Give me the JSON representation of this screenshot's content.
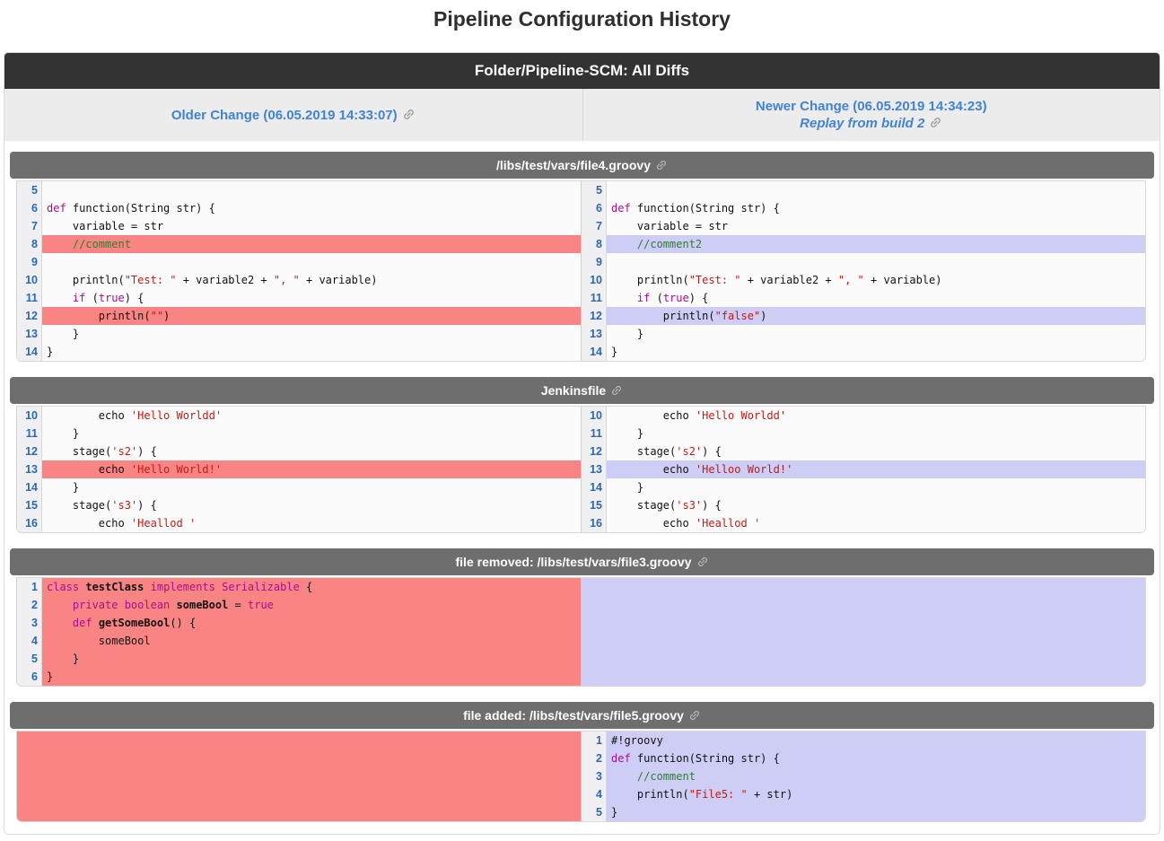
{
  "page": {
    "title": "Pipeline Configuration History"
  },
  "header": {
    "title": "Folder/Pipeline-SCM: All Diffs"
  },
  "compare": {
    "older_label": "Older Change (06.05.2019 14:33:07)",
    "newer_label": "Newer Change (06.05.2019 14:34:23)",
    "replay_label": "Replay from build 2"
  },
  "icons": {
    "link": "chain-link-icon"
  },
  "colors": {
    "link_blue": "#4183d4",
    "removed_bg": "#f98484",
    "added_bg": "#cdcdf6",
    "title_bar_bg": "#333333",
    "section_header_bg": "#6e6e6e",
    "keyword": "#aa0d91",
    "string": "#c41a16",
    "comment": "#2e7d32",
    "line_number": "#2e67b1"
  },
  "sections": [
    {
      "title": "/libs/test/vars/file4.groovy",
      "left": {
        "lines": [
          [
            "5",
            "",
            []
          ],
          [
            "6",
            "",
            [
              [
                "k",
                "def"
              ],
              [
                "p",
                " function(String str) {"
              ]
            ]
          ],
          [
            "7",
            "",
            [
              [
                "p",
                "    variable = str"
              ]
            ]
          ],
          [
            "8",
            "del",
            [
              [
                "p",
                "    "
              ],
              [
                "c",
                "//comment"
              ]
            ]
          ],
          [
            "9",
            "",
            []
          ],
          [
            "10",
            "",
            [
              [
                "p",
                "    println("
              ],
              [
                "s",
                "\"Test: \""
              ],
              [
                "p",
                " + variable2 + "
              ],
              [
                "s",
                "\", \""
              ],
              [
                "p",
                " + variable)"
              ]
            ]
          ],
          [
            "11",
            "",
            [
              [
                "p",
                "    "
              ],
              [
                "k",
                "if"
              ],
              [
                "p",
                " ("
              ],
              [
                "k",
                "true"
              ],
              [
                "p",
                ") {"
              ]
            ]
          ],
          [
            "12",
            "del",
            [
              [
                "p",
                "        println("
              ],
              [
                "s",
                "\"\""
              ],
              [
                "p",
                ")"
              ]
            ]
          ],
          [
            "13",
            "",
            [
              [
                "p",
                "    }"
              ]
            ]
          ],
          [
            "14",
            "",
            [
              [
                "p",
                "}"
              ]
            ]
          ]
        ]
      },
      "right": {
        "lines": [
          [
            "5",
            "",
            []
          ],
          [
            "6",
            "",
            [
              [
                "k",
                "def"
              ],
              [
                "p",
                " function(String str) {"
              ]
            ]
          ],
          [
            "7",
            "",
            [
              [
                "p",
                "    variable = str"
              ]
            ]
          ],
          [
            "8",
            "add",
            [
              [
                "p",
                "    "
              ],
              [
                "c",
                "//comment2"
              ]
            ]
          ],
          [
            "9",
            "",
            []
          ],
          [
            "10",
            "",
            [
              [
                "p",
                "    println("
              ],
              [
                "s",
                "\"Test: \""
              ],
              [
                "p",
                " + variable2 + "
              ],
              [
                "s",
                "\", \""
              ],
              [
                "p",
                " + variable)"
              ]
            ]
          ],
          [
            "11",
            "",
            [
              [
                "p",
                "    "
              ],
              [
                "k",
                "if"
              ],
              [
                "p",
                " ("
              ],
              [
                "k",
                "true"
              ],
              [
                "p",
                ") {"
              ]
            ]
          ],
          [
            "12",
            "add",
            [
              [
                "p",
                "        println("
              ],
              [
                "s",
                "\"false\""
              ],
              [
                "p",
                ")"
              ]
            ]
          ],
          [
            "13",
            "",
            [
              [
                "p",
                "    }"
              ]
            ]
          ],
          [
            "14",
            "",
            [
              [
                "p",
                "}"
              ]
            ]
          ]
        ]
      }
    },
    {
      "title": "Jenkinsfile",
      "left": {
        "lines": [
          [
            "10",
            "",
            [
              [
                "p",
                "        echo "
              ],
              [
                "s",
                "'Hello Worldd'"
              ]
            ]
          ],
          [
            "11",
            "",
            [
              [
                "p",
                "    }"
              ]
            ]
          ],
          [
            "12",
            "",
            [
              [
                "p",
                "    stage("
              ],
              [
                "s",
                "'s2'"
              ],
              [
                "p",
                ") {"
              ]
            ]
          ],
          [
            "13",
            "del",
            [
              [
                "p",
                "        echo "
              ],
              [
                "s",
                "'Hello World!'"
              ]
            ]
          ],
          [
            "14",
            "",
            [
              [
                "p",
                "    }"
              ]
            ]
          ],
          [
            "15",
            "",
            [
              [
                "p",
                "    stage("
              ],
              [
                "s",
                "'s3'"
              ],
              [
                "p",
                ") {"
              ]
            ]
          ],
          [
            "16",
            "",
            [
              [
                "p",
                "        echo "
              ],
              [
                "s",
                "'Heallod '"
              ]
            ]
          ]
        ]
      },
      "right": {
        "lines": [
          [
            "10",
            "",
            [
              [
                "p",
                "        echo "
              ],
              [
                "s",
                "'Hello Worldd'"
              ]
            ]
          ],
          [
            "11",
            "",
            [
              [
                "p",
                "    }"
              ]
            ]
          ],
          [
            "12",
            "",
            [
              [
                "p",
                "    stage("
              ],
              [
                "s",
                "'s2'"
              ],
              [
                "p",
                ") {"
              ]
            ]
          ],
          [
            "13",
            "add",
            [
              [
                "p",
                "        echo "
              ],
              [
                "s",
                "'Helloo World!'"
              ]
            ]
          ],
          [
            "14",
            "",
            [
              [
                "p",
                "    }"
              ]
            ]
          ],
          [
            "15",
            "",
            [
              [
                "p",
                "    stage("
              ],
              [
                "s",
                "'s3'"
              ],
              [
                "p",
                ") {"
              ]
            ]
          ],
          [
            "16",
            "",
            [
              [
                "p",
                "        echo "
              ],
              [
                "s",
                "'Heallod '"
              ]
            ]
          ]
        ]
      }
    },
    {
      "title": "file removed: /libs/test/vars/file3.groovy",
      "left": {
        "lines": [
          [
            "1",
            "del",
            [
              [
                "k",
                "class"
              ],
              [
                "p",
                " "
              ],
              [
                "b",
                "testClass"
              ],
              [
                "p",
                " "
              ],
              [
                "k",
                "implements"
              ],
              [
                "p",
                " "
              ],
              [
                "k",
                "Serializable"
              ],
              [
                "p",
                " {"
              ]
            ]
          ],
          [
            "2",
            "del",
            [
              [
                "p",
                "    "
              ],
              [
                "k",
                "private boolean"
              ],
              [
                "p",
                " "
              ],
              [
                "b",
                "someBool"
              ],
              [
                "p",
                " = "
              ],
              [
                "k",
                "true"
              ]
            ]
          ],
          [
            "3",
            "del",
            [
              [
                "p",
                "    "
              ],
              [
                "k",
                "def"
              ],
              [
                "p",
                " "
              ],
              [
                "b",
                "getSomeBool"
              ],
              [
                "p",
                "() {"
              ]
            ]
          ],
          [
            "4",
            "del",
            [
              [
                "p",
                "        someBool"
              ]
            ]
          ],
          [
            "5",
            "del",
            [
              [
                "p",
                "    }"
              ]
            ]
          ],
          [
            "6",
            "del",
            [
              [
                "p",
                "}"
              ]
            ]
          ]
        ]
      },
      "right": {
        "block": "add"
      }
    },
    {
      "title": "file added: /libs/test/vars/file5.groovy",
      "left": {
        "block": "del"
      },
      "right": {
        "lines": [
          [
            "1",
            "add",
            [
              [
                "p",
                "#!groovy"
              ]
            ]
          ],
          [
            "2",
            "add",
            [
              [
                "k",
                "def"
              ],
              [
                "p",
                " function(String str) {"
              ]
            ]
          ],
          [
            "3",
            "add",
            [
              [
                "p",
                "    "
              ],
              [
                "c",
                "//comment"
              ]
            ]
          ],
          [
            "4",
            "add",
            [
              [
                "p",
                "    println("
              ],
              [
                "s",
                "\"File5: \""
              ],
              [
                "p",
                " + str)"
              ]
            ]
          ],
          [
            "5",
            "add",
            [
              [
                "p",
                "}"
              ]
            ]
          ]
        ]
      }
    }
  ]
}
